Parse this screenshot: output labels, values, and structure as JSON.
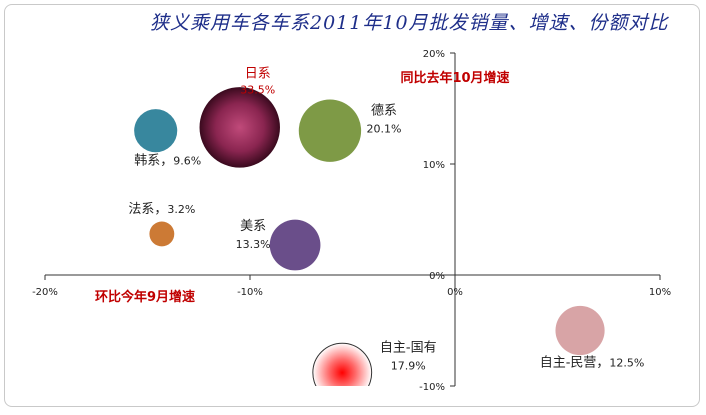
{
  "chart_data": {
    "type": "bubble",
    "title": "狭义乘用车各车系2011年10月批发销量、增速、份额对比",
    "xlabel": "环比今年9月增速",
    "ylabel": "同比去年10月增速",
    "xlim": [
      -20,
      10
    ],
    "ylim": [
      -10,
      20
    ],
    "x_ticks": [
      "-20%",
      "-10%",
      "0%",
      "10%"
    ],
    "y_ticks": [
      "-10%",
      "0%",
      "10%",
      "20%"
    ],
    "series": [
      {
        "name": "日系",
        "share_label": "33.5%",
        "share": 33.5,
        "x": -10.5,
        "y": 13.3,
        "color": "#8a2550"
      },
      {
        "name": "德系",
        "share_label": "20.1%",
        "share": 20.1,
        "x": -6.1,
        "y": 13.0,
        "color": "#7e9a46"
      },
      {
        "name": "韩系",
        "share_label": "9.6%",
        "share": 9.6,
        "x": -14.6,
        "y": 13.0,
        "color": "#38879e"
      },
      {
        "name": "法系",
        "share_label": "3.2%",
        "share": 3.2,
        "x": -14.3,
        "y": 3.7,
        "color": "#cc7a35"
      },
      {
        "name": "美系",
        "share_label": "13.3%",
        "share": 13.3,
        "x": -7.8,
        "y": 2.7,
        "color": "#6a4e8a"
      },
      {
        "name": "自主-国有",
        "share_label": "17.9%",
        "share": 17.9,
        "x": -5.5,
        "y": -8.8,
        "color": "#ff0000"
      },
      {
        "name": "自主-民营",
        "share_label": "12.5%",
        "share": 12.5,
        "x": 6.1,
        "y": -5.0,
        "color": "#d8a4a6"
      }
    ]
  }
}
